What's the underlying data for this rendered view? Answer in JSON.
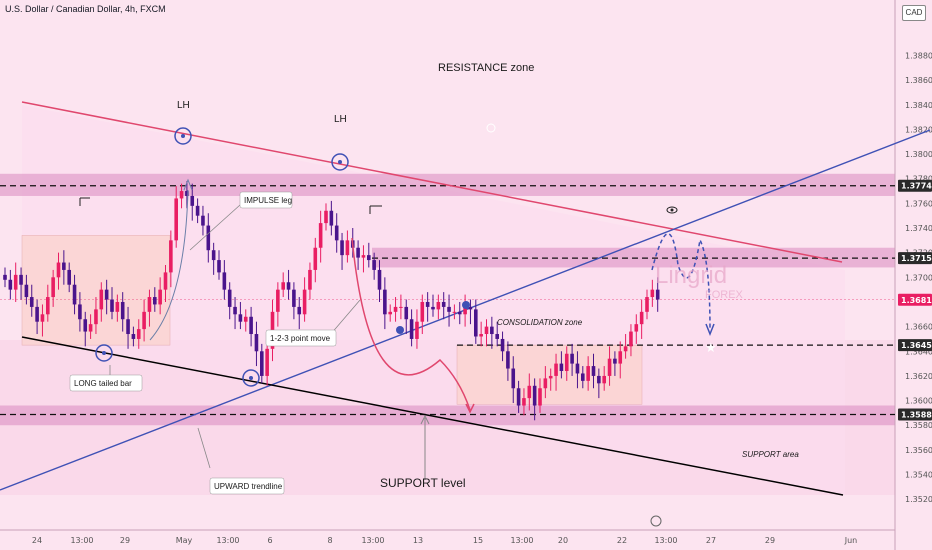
{
  "header": {
    "title": "U.S. Dollar / Canadian Dollar, 4h, FXCM"
  },
  "currency_badge": "CAD",
  "colors": {
    "background": "#fce4f0",
    "bull": "#e91e63",
    "bear": "#4a148c",
    "resistance_line": "#e0476e",
    "trendline": "#3f51b5",
    "support_line": "#000000",
    "zone": "#d988c0",
    "box": "#fbd4d0"
  },
  "chart_data": {
    "type": "candlestick",
    "title": "U.S. Dollar / Canadian Dollar, 4h, FXCM",
    "y_range": [
      1.3495,
      1.3925
    ],
    "y_ticks": [
      "1.38800",
      "1.38600",
      "1.38400",
      "1.38200",
      "1.38000",
      "1.37800",
      "1.37600",
      "1.37400",
      "1.37200",
      "1.37000",
      "1.36800",
      "1.36600",
      "1.36400",
      "1.36200",
      "1.36000",
      "1.35800",
      "1.35600",
      "1.35400",
      "1.35200"
    ],
    "price_labels": [
      {
        "text": "1.37743",
        "color": "#2a2a2a"
      },
      {
        "text": "1.37156",
        "color": "#2a2a2a"
      },
      {
        "text": "1.36818",
        "color": "#e91e63"
      },
      {
        "text": "1.36450",
        "color": "#2a2a2a"
      },
      {
        "text": "1.35887",
        "color": "#2a2a2a"
      }
    ],
    "x_ticks": [
      "24",
      "13:00",
      "29",
      "May",
      "13:00",
      "6",
      "8",
      "13:00",
      "13",
      "15",
      "13:00",
      "20",
      "22",
      "13:00",
      "27",
      "29",
      "Jun"
    ],
    "annotations": {
      "resistance_zone": "RESISTANCE zone",
      "lh1": "LH",
      "lh2": "LH",
      "impulse": "IMPULSE leg",
      "move": "1-2-3 point move",
      "consolidation": "CONSOLIDATION zone",
      "long_tailed": "LONG tailed bar",
      "upward_trendline": "UPWARD trendline",
      "support_level": "SUPPORT level",
      "support_area": "SUPPORT area",
      "watermark_main": "Lingrid",
      "watermark_sub": "FOREX"
    },
    "candles_close": [
      1.3698,
      1.369,
      1.3702,
      1.3694,
      1.3684,
      1.3676,
      1.3664,
      1.367,
      1.3684,
      1.37,
      1.3712,
      1.3706,
      1.3694,
      1.3678,
      1.3666,
      1.3656,
      1.3662,
      1.3674,
      1.369,
      1.3682,
      1.3672,
      1.368,
      1.3666,
      1.3654,
      1.365,
      1.3658,
      1.3672,
      1.3684,
      1.3678,
      1.369,
      1.3704,
      1.373,
      1.3764,
      1.377,
      1.3766,
      1.3758,
      1.375,
      1.3742,
      1.3722,
      1.3714,
      1.3704,
      1.369,
      1.3676,
      1.367,
      1.3664,
      1.3668,
      1.3654,
      1.364,
      1.362,
      1.3642,
      1.3672,
      1.369,
      1.3696,
      1.369,
      1.3676,
      1.367,
      1.369,
      1.3706,
      1.3724,
      1.3744,
      1.3754,
      1.3742,
      1.373,
      1.3718,
      1.373,
      1.3724,
      1.3716,
      1.3718,
      1.3714,
      1.3706,
      1.369,
      1.367,
      1.3672,
      1.3676,
      1.3676,
      1.3666,
      1.365,
      1.3664,
      1.368,
      1.3676,
      1.3674,
      1.368,
      1.3676,
      1.3672,
      1.3672,
      1.367,
      1.3676,
      1.3674,
      1.3652,
      1.3654,
      1.366,
      1.3654,
      1.365,
      1.364,
      1.3626,
      1.361,
      1.3596,
      1.3602,
      1.3612,
      1.3596,
      1.361,
      1.3618,
      1.362,
      1.363,
      1.3624,
      1.3638,
      1.363,
      1.3622,
      1.3616,
      1.3628,
      1.362,
      1.3614,
      1.362,
      1.3634,
      1.363,
      1.364,
      1.3644,
      1.3656,
      1.3662,
      1.3672,
      1.3684,
      1.369,
      1.3682
    ]
  }
}
